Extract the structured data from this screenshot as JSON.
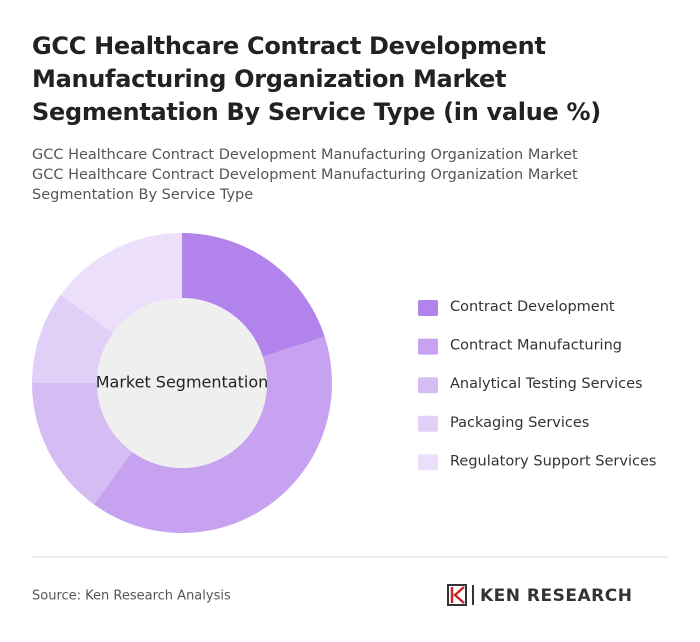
{
  "chart_data": {
    "type": "donut",
    "title": "GCC Healthcare Contract Development Manufacturing Organization Market Segmentation By Service Type (in value %)",
    "subtitle": [
      "GCC Healthcare Contract Development Manufacturing Organization Market",
      "GCC Healthcare Contract Development Manufacturing Organization Market Segmentation By Service Type"
    ],
    "center_label": "Market Segmentation",
    "categories": [
      "Contract Development",
      "Contract Manufacturing",
      "Analytical Testing Services",
      "Packaging Services",
      "Regulatory Support Services"
    ],
    "values": [
      20,
      40,
      15,
      10,
      15
    ],
    "colors": [
      "#b283eb",
      "#c6a2f1",
      "#d5bdf4",
      "#e0cff7",
      "#ebdff9"
    ]
  },
  "footer": {
    "source": "Source: Ken Research Analysis",
    "logo": "KEN RESEARCH"
  }
}
